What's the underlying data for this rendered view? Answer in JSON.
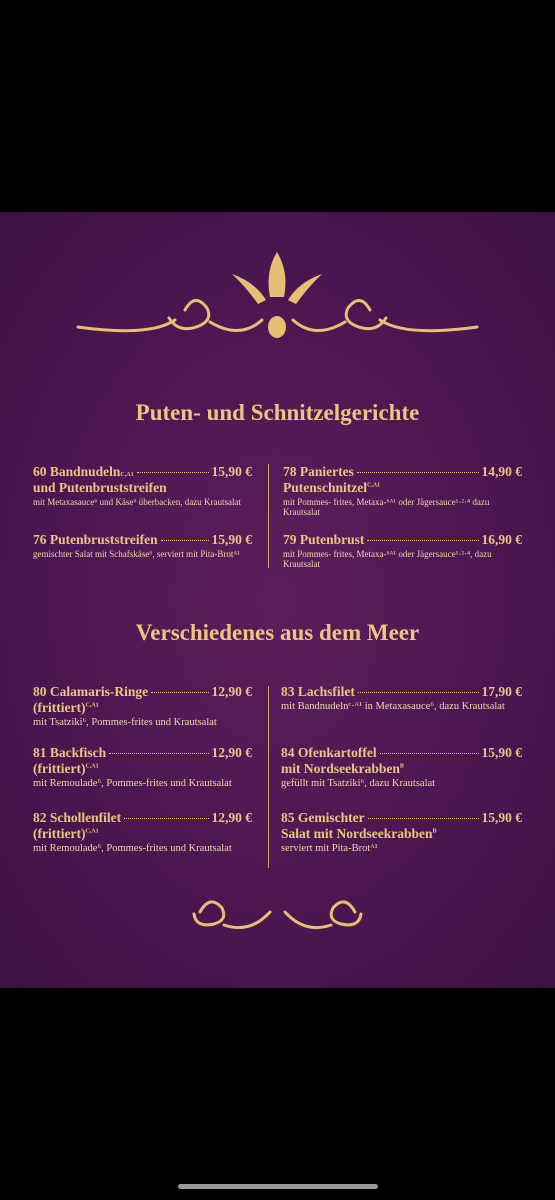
{
  "sections": [
    {
      "title": "Puten- und Schnitzelgerichte",
      "columns": [
        [
          {
            "title": "60 Bandnudeln",
            "title_sup": "C,A1",
            "price": "15,90 €",
            "subtitle": "und Putenbruststreifen",
            "description": "mit Metaxasauce⁶ und Käse⁶ überbacken, dazu Krautsalat"
          },
          {
            "title": "76 Putenbruststreifen",
            "price": "15,90 €",
            "description": "gemischter Salat mit Schafskäse⁶, serviert mit Pita-Brotᴬ¹"
          }
        ],
        [
          {
            "title": "78 Paniertes",
            "price": "14,90 €",
            "subtitle": "Putenschnitzel",
            "subtitle_sup": "C,A1",
            "description": "mit Pommes- frites, Metaxa-⁶ᴬ¹ oder Jägersauce¹·²·⁴ dazu Krautsalat"
          },
          {
            "title": "79 Putenbrust",
            "price": "16,90 €",
            "description": "mit Pommes- frites, Metaxa-⁶ᴬ¹ oder Jägersauce¹·²·⁴, dazu Krautsalat"
          }
        ]
      ]
    },
    {
      "title": "Verschiedenes aus dem Meer",
      "columns": [
        [
          {
            "title": "80 Calamaris-Ringe",
            "price": "12,90 €",
            "subtitle": "(frittiert)",
            "subtitle_sup": "C,A1",
            "description": "mit Tsatziki⁶, Pommes-frites und Krautsalat"
          },
          {
            "title": "81 Backfisch",
            "price": "12,90 €",
            "subtitle": "(frittiert)",
            "subtitle_sup": "C,A1",
            "description": "mit Remoulade⁶, Pommes-frites und Krautsalat"
          },
          {
            "title": "82 Schollenfilet",
            "price": "12,90 €",
            "subtitle": "(frittiert)",
            "subtitle_sup": "C,A1",
            "description": "mit Remoulade⁶, Pommes-frites und Krautsalat"
          }
        ],
        [
          {
            "title": "83 Lachsfilet",
            "price": "17,90 €",
            "description": "mit Bandnudelnᶜ·ᴬ¹ in Metaxasauce⁶, dazu Krautsalat"
          },
          {
            "title": "84 Ofenkartoffel",
            "price": "15,90 €",
            "subtitle": "mit Nordseekrabben",
            "subtitle_sup": "B",
            "description": "gefüllt mit Tsatziki⁶, dazu Krautsalat"
          },
          {
            "title": "85 Gemischter",
            "price": "15,90 €",
            "subtitle": "Salat mit Nordseekrabben",
            "subtitle_sup": "B",
            "description": "serviert mit Pita-Brotᴬ¹"
          }
        ]
      ]
    }
  ]
}
